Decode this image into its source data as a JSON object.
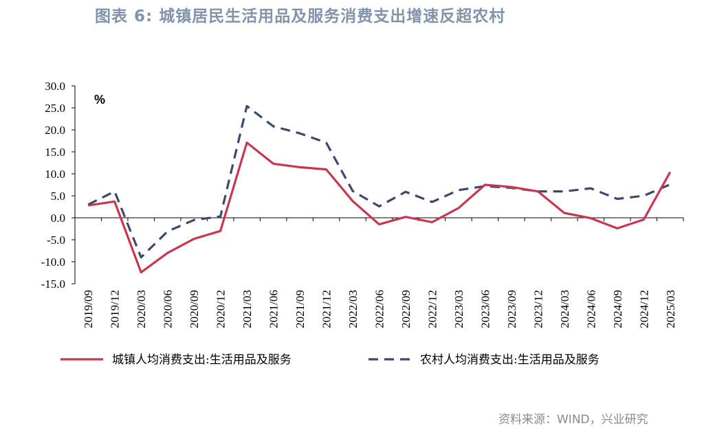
{
  "title": "图表 6: 城镇居民生活用品及服务消费支出增速反超农村",
  "unit_label": "%",
  "source": "资料来源：WIND，兴业研究",
  "chart_data": {
    "type": "line",
    "categories": [
      "2019/09",
      "2019/12",
      "2020/03",
      "2020/06",
      "2020/09",
      "2020/12",
      "2021/03",
      "2021/06",
      "2021/09",
      "2021/12",
      "2022/03",
      "2022/06",
      "2022/09",
      "2022/12",
      "2023/03",
      "2023/06",
      "2023/09",
      "2023/12",
      "2024/03",
      "2024/06",
      "2024/09",
      "2024/12",
      "2025/03"
    ],
    "y_ticks": [
      "30.0",
      "25.0",
      "20.0",
      "15.0",
      "10.0",
      "5.0",
      "0.0",
      "-5.0",
      "-10.0",
      "-15.0"
    ],
    "ylim": [
      -15,
      30
    ],
    "series": [
      {
        "name": "城镇人均消费支出:生活用品及服务",
        "color": "#c8374f",
        "dashed": false,
        "values": [
          2.8,
          3.7,
          -12.4,
          -8.0,
          -4.8,
          -3.0,
          17.1,
          12.3,
          11.5,
          11.0,
          3.8,
          -1.5,
          0.2,
          -1.0,
          2.2,
          7.5,
          7.0,
          6.0,
          1.1,
          -0.1,
          -2.4,
          -0.4,
          10.4
        ]
      },
      {
        "name": "农村人均消费支出:生活用品及服务",
        "color": "#3b4a6b",
        "dashed": true,
        "values": [
          3.0,
          6.0,
          -9.0,
          -3.1,
          -0.5,
          0.3,
          25.4,
          20.8,
          19.2,
          17.1,
          6.1,
          2.6,
          5.9,
          3.6,
          6.3,
          7.2,
          6.8,
          6.0,
          6.0,
          6.7,
          4.3,
          5.0,
          7.6
        ]
      }
    ]
  }
}
